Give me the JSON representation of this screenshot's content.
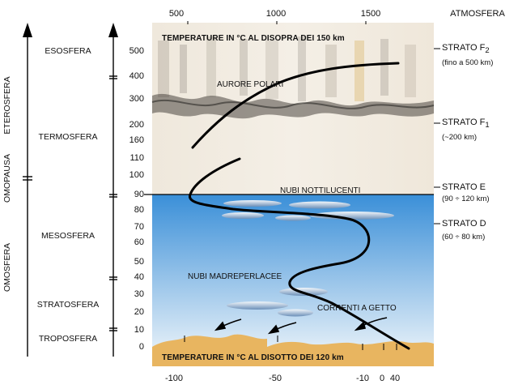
{
  "top_axis": {
    "ticks": [
      "500",
      "1000",
      "1500"
    ],
    "right_label": "ATMOSFERA"
  },
  "bottom_axis": {
    "ticks": [
      "-100",
      "-50",
      "-10",
      "0",
      "40"
    ]
  },
  "altitude_ticks": [
    "500",
    "400",
    "300",
    "200",
    "160",
    "110",
    "100",
    "90",
    "80",
    "70",
    "60",
    "50",
    "40",
    "30",
    "20",
    "10",
    "0"
  ],
  "regions_outer": [
    {
      "label": "ETEROSFERA"
    },
    {
      "label": "OMOPAUSA"
    },
    {
      "label": "OMOSFERA"
    }
  ],
  "regions_inner": [
    {
      "label": "ESOSFERA"
    },
    {
      "label": "TERMOSFERA"
    },
    {
      "label": "MESOSFERA"
    },
    {
      "label": "STRATOSFERA"
    },
    {
      "label": "TROPOSFERA"
    }
  ],
  "captions": {
    "top_temperature": "TEMPERATURE IN °C AL DISOPRA DEI 150 km",
    "bottom_temperature": "TEMPERATURE IN °C AL DISOTTO DEI 120 km"
  },
  "annotations": {
    "aurore": "AURORE POLARI",
    "nottilucenti": "NUBI NOTTILUCENTI",
    "madreperlacee": "NUBI MADREPERLACEE",
    "correnti": "CORRENTI A GETTO"
  },
  "strata": [
    {
      "name": "STRATO F",
      "sub": "2",
      "detail": "(fino a 500 km)"
    },
    {
      "name": "STRATO F",
      "sub": "1",
      "detail": "(~200 km)"
    },
    {
      "name": "STRATO E",
      "sub": "",
      "detail": "(90 ÷ 120 km)"
    },
    {
      "name": "STRATO D",
      "sub": "",
      "detail": "(60 ÷ 80 km)"
    }
  ],
  "colors": {
    "sky_top": "#3a8fd8",
    "sky_bottom": "#e8f1f8",
    "ground": "#e8b560",
    "upper_bg": "#f2ece2",
    "curve": "#000000"
  }
}
